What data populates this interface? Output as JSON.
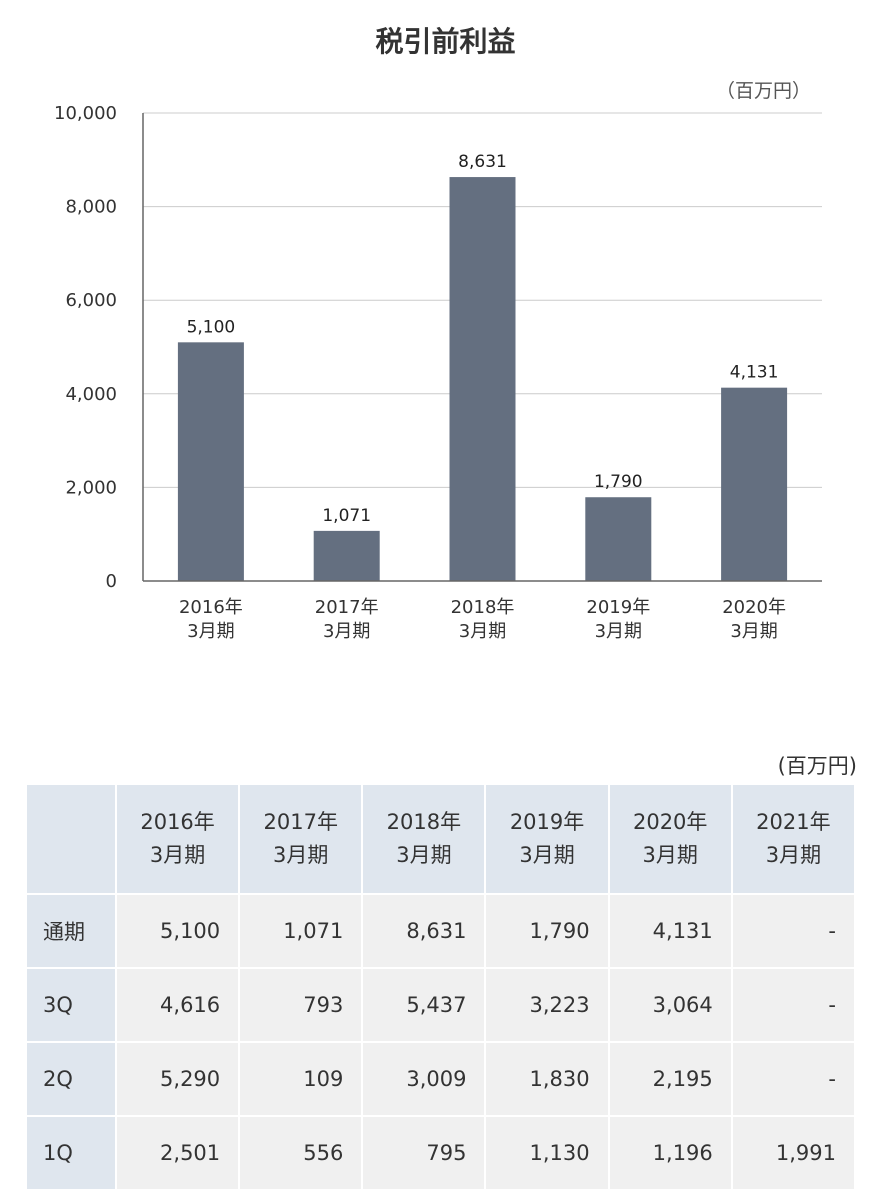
{
  "chart_data": {
    "type": "bar",
    "title": "税引前利益",
    "unit": "（百万円）",
    "categories": [
      [
        "2016年",
        "3月期"
      ],
      [
        "2017年",
        "3月期"
      ],
      [
        "2018年",
        "3月期"
      ],
      [
        "2019年",
        "3月期"
      ],
      [
        "2020年",
        "3月期"
      ]
    ],
    "values": [
      5100,
      1071,
      8631,
      1790,
      4131
    ],
    "value_labels": [
      "5,100",
      "1,071",
      "8,631",
      "1,790",
      "4,131"
    ],
    "ylim": [
      0,
      10000
    ],
    "yticks": [
      0,
      2000,
      4000,
      6000,
      8000,
      10000
    ],
    "ytick_labels": [
      "0",
      "2,000",
      "4,000",
      "6,000",
      "8,000",
      "10,000"
    ],
    "grid": true,
    "bar_color": "#646f80"
  },
  "table": {
    "unit": "(百万円)",
    "headers": [
      [
        "2016年",
        "3月期"
      ],
      [
        "2017年",
        "3月期"
      ],
      [
        "2018年",
        "3月期"
      ],
      [
        "2019年",
        "3月期"
      ],
      [
        "2020年",
        "3月期"
      ],
      [
        "2021年",
        "3月期"
      ]
    ],
    "rows": [
      {
        "label": "通期",
        "cells": [
          "5,100",
          "1,071",
          "8,631",
          "1,790",
          "4,131",
          "-"
        ]
      },
      {
        "label": "3Q",
        "cells": [
          "4,616",
          "793",
          "5,437",
          "3,223",
          "3,064",
          "-"
        ]
      },
      {
        "label": "2Q",
        "cells": [
          "5,290",
          "109",
          "3,009",
          "1,830",
          "2,195",
          "-"
        ]
      },
      {
        "label": "1Q",
        "cells": [
          "2,501",
          "556",
          "795",
          "1,130",
          "1,196",
          "1,991"
        ]
      }
    ],
    "header_bg": "#dfe6ee",
    "cell_bg": "#f0f0f0"
  }
}
